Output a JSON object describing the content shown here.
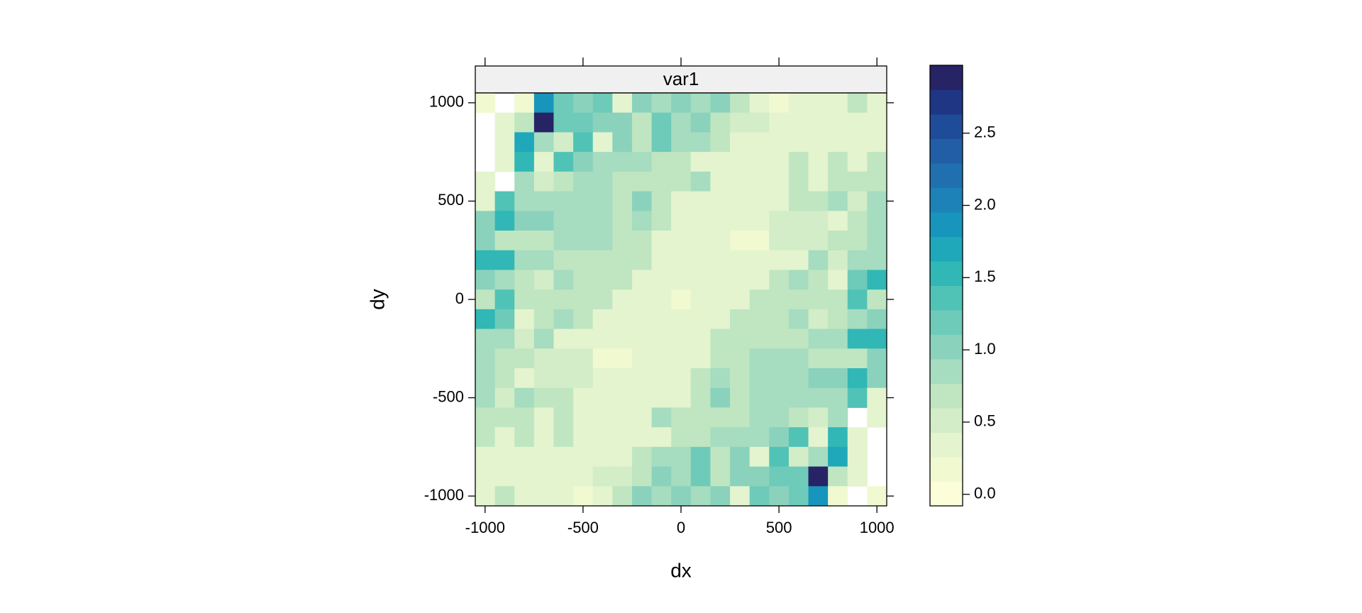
{
  "chart_data": {
    "type": "heatmap",
    "title": "var1",
    "xlabel": "dx",
    "ylabel": "dy",
    "x": [
      -1000,
      -900,
      -800,
      -700,
      -600,
      -500,
      -400,
      -300,
      -200,
      -100,
      0,
      100,
      200,
      300,
      400,
      500,
      600,
      700,
      800,
      900,
      1000
    ],
    "y": [
      1000,
      900,
      800,
      700,
      600,
      500,
      400,
      300,
      200,
      100,
      0,
      -100,
      -200,
      -300,
      -400,
      -500,
      -600,
      -700,
      -800,
      -900,
      -1000
    ],
    "xlim": [
      -1050,
      1050
    ],
    "ylim": [
      -1050,
      1050
    ],
    "xticks": [
      -1000,
      -500,
      0,
      500,
      1000
    ],
    "yticks": [
      -1000,
      -500,
      0,
      500,
      1000
    ],
    "values": [
      [
        0.2,
        null,
        0.2,
        1.8,
        1.2,
        1.0,
        1.2,
        0.3,
        1.1,
        0.8,
        1.0,
        0.9,
        1.0,
        0.6,
        0.4,
        0.2,
        0.4,
        0.4,
        0.4,
        0.6,
        0.4
      ],
      [
        null,
        0.3,
        0.6,
        2.9,
        1.2,
        1.2,
        1.0,
        1.0,
        0.7,
        1.2,
        0.8,
        1.0,
        0.7,
        0.5,
        0.5,
        0.3,
        0.4,
        0.4,
        0.4,
        0.4,
        0.4
      ],
      [
        null,
        0.3,
        1.7,
        0.9,
        0.5,
        1.4,
        0.3,
        1.0,
        0.7,
        1.2,
        0.8,
        0.8,
        0.6,
        0.4,
        0.4,
        0.3,
        0.4,
        0.4,
        0.4,
        0.4,
        0.4
      ],
      [
        null,
        0.4,
        1.6,
        0.3,
        1.3,
        1.0,
        0.8,
        0.9,
        0.9,
        0.7,
        0.6,
        0.4,
        0.4,
        0.3,
        0.4,
        0.3,
        0.6,
        0.4,
        0.6,
        0.4,
        0.6
      ],
      [
        0.3,
        null,
        0.9,
        0.5,
        0.7,
        0.9,
        0.9,
        0.7,
        0.7,
        0.7,
        0.6,
        0.8,
        0.4,
        0.3,
        0.3,
        0.4,
        0.6,
        0.4,
        0.6,
        0.6,
        0.6
      ],
      [
        0.4,
        1.3,
        0.9,
        0.9,
        0.9,
        0.8,
        0.8,
        0.7,
        1.0,
        0.7,
        0.4,
        0.4,
        0.3,
        0.3,
        0.3,
        0.4,
        0.6,
        0.6,
        0.8,
        0.5,
        0.8
      ],
      [
        1.1,
        1.6,
        1.1,
        1.1,
        0.8,
        0.8,
        0.8,
        0.7,
        0.8,
        0.6,
        0.4,
        0.4,
        0.4,
        0.4,
        0.4,
        0.5,
        0.5,
        0.5,
        0.3,
        0.6,
        0.9
      ],
      [
        1.1,
        0.7,
        0.6,
        0.7,
        0.9,
        0.8,
        0.8,
        0.6,
        0.6,
        0.4,
        0.4,
        0.3,
        0.4,
        0.2,
        0.2,
        0.5,
        0.5,
        0.5,
        0.7,
        0.7,
        0.9
      ],
      [
        1.6,
        1.6,
        0.9,
        0.9,
        0.7,
        0.7,
        0.7,
        0.6,
        0.6,
        0.3,
        0.3,
        0.3,
        0.3,
        0.3,
        0.4,
        0.4,
        0.4,
        0.9,
        0.5,
        0.9,
        0.9
      ],
      [
        1.1,
        0.9,
        0.7,
        0.5,
        0.9,
        0.7,
        0.6,
        0.6,
        0.4,
        0.3,
        0.3,
        0.3,
        0.3,
        0.3,
        0.4,
        0.6,
        0.9,
        0.6,
        0.4,
        1.2,
        1.6
      ],
      [
        0.7,
        1.3,
        0.7,
        0.7,
        0.7,
        0.6,
        0.6,
        0.4,
        0.3,
        0.3,
        0.1,
        0.3,
        0.3,
        0.4,
        0.6,
        0.6,
        0.7,
        0.7,
        0.7,
        1.3,
        0.7
      ],
      [
        1.6,
        1.2,
        0.4,
        0.6,
        0.9,
        0.6,
        0.4,
        0.3,
        0.3,
        0.3,
        0.3,
        0.3,
        0.4,
        0.6,
        0.6,
        0.7,
        0.9,
        0.5,
        0.7,
        0.9,
        1.1
      ],
      [
        0.9,
        0.9,
        0.5,
        0.9,
        0.4,
        0.4,
        0.4,
        0.3,
        0.3,
        0.3,
        0.3,
        0.3,
        0.6,
        0.6,
        0.7,
        0.7,
        0.7,
        0.9,
        0.9,
        1.6,
        1.6
      ],
      [
        0.9,
        0.7,
        0.7,
        0.5,
        0.5,
        0.5,
        0.2,
        0.2,
        0.4,
        0.3,
        0.4,
        0.4,
        0.6,
        0.6,
        0.8,
        0.8,
        0.9,
        0.7,
        0.6,
        0.7,
        1.1
      ],
      [
        0.9,
        0.6,
        0.3,
        0.5,
        0.5,
        0.5,
        0.4,
        0.4,
        0.4,
        0.4,
        0.4,
        0.6,
        0.8,
        0.7,
        0.8,
        0.8,
        0.8,
        1.1,
        1.1,
        1.6,
        1.1
      ],
      [
        0.8,
        0.5,
        0.8,
        0.6,
        0.6,
        0.4,
        0.3,
        0.3,
        0.3,
        0.4,
        0.4,
        0.7,
        1.0,
        0.7,
        0.8,
        0.8,
        0.9,
        0.9,
        0.9,
        1.3,
        0.4
      ],
      [
        0.6,
        0.6,
        0.6,
        0.4,
        0.6,
        0.4,
        0.3,
        0.3,
        0.4,
        0.8,
        0.6,
        0.7,
        0.7,
        0.7,
        0.9,
        0.9,
        0.7,
        0.5,
        0.9,
        null,
        0.3
      ],
      [
        0.6,
        0.4,
        0.6,
        0.4,
        0.6,
        0.3,
        0.4,
        0.3,
        0.4,
        0.4,
        0.6,
        0.7,
        0.9,
        0.9,
        0.8,
        1.0,
        1.3,
        0.3,
        1.6,
        0.4,
        null
      ],
      [
        0.4,
        0.4,
        0.4,
        0.4,
        0.4,
        0.3,
        0.4,
        0.4,
        0.6,
        0.8,
        0.8,
        1.2,
        0.7,
        1.0,
        0.3,
        1.4,
        0.5,
        0.9,
        1.7,
        0.3,
        null
      ],
      [
        0.4,
        0.4,
        0.4,
        0.4,
        0.4,
        0.3,
        0.5,
        0.5,
        0.7,
        1.0,
        0.8,
        1.2,
        0.7,
        1.0,
        1.0,
        1.2,
        1.2,
        2.9,
        0.6,
        0.3,
        null
      ],
      [
        0.4,
        0.6,
        0.4,
        0.4,
        0.4,
        0.2,
        0.4,
        0.6,
        1.0,
        0.9,
        1.0,
        0.8,
        1.1,
        0.3,
        1.2,
        1.0,
        1.2,
        1.8,
        0.2,
        null,
        0.2
      ]
    ],
    "colorbar": {
      "zlim": [
        -0.08,
        2.97
      ],
      "colors": [
        "#fcfed9",
        "#f1f9d1",
        "#e4f4cf",
        "#d2edc7",
        "#bfe6c1",
        "#a6dcbf",
        "#8bd2bd",
        "#6ecbb9",
        "#50c3b6",
        "#31b7b5",
        "#1ea8b9",
        "#1895bc",
        "#1c82b7",
        "#2070b0",
        "#215ea5",
        "#1f4c99",
        "#1f3685",
        "#262465"
      ],
      "ticks": [
        {
          "value": 0,
          "label": "0.0"
        },
        {
          "value": 0.5,
          "label": "0.5"
        },
        {
          "value": 1,
          "label": "1.0"
        },
        {
          "value": 1.5,
          "label": "1.5"
        },
        {
          "value": 2,
          "label": "2.0"
        },
        {
          "value": 2.5,
          "label": "2.5"
        }
      ]
    }
  }
}
